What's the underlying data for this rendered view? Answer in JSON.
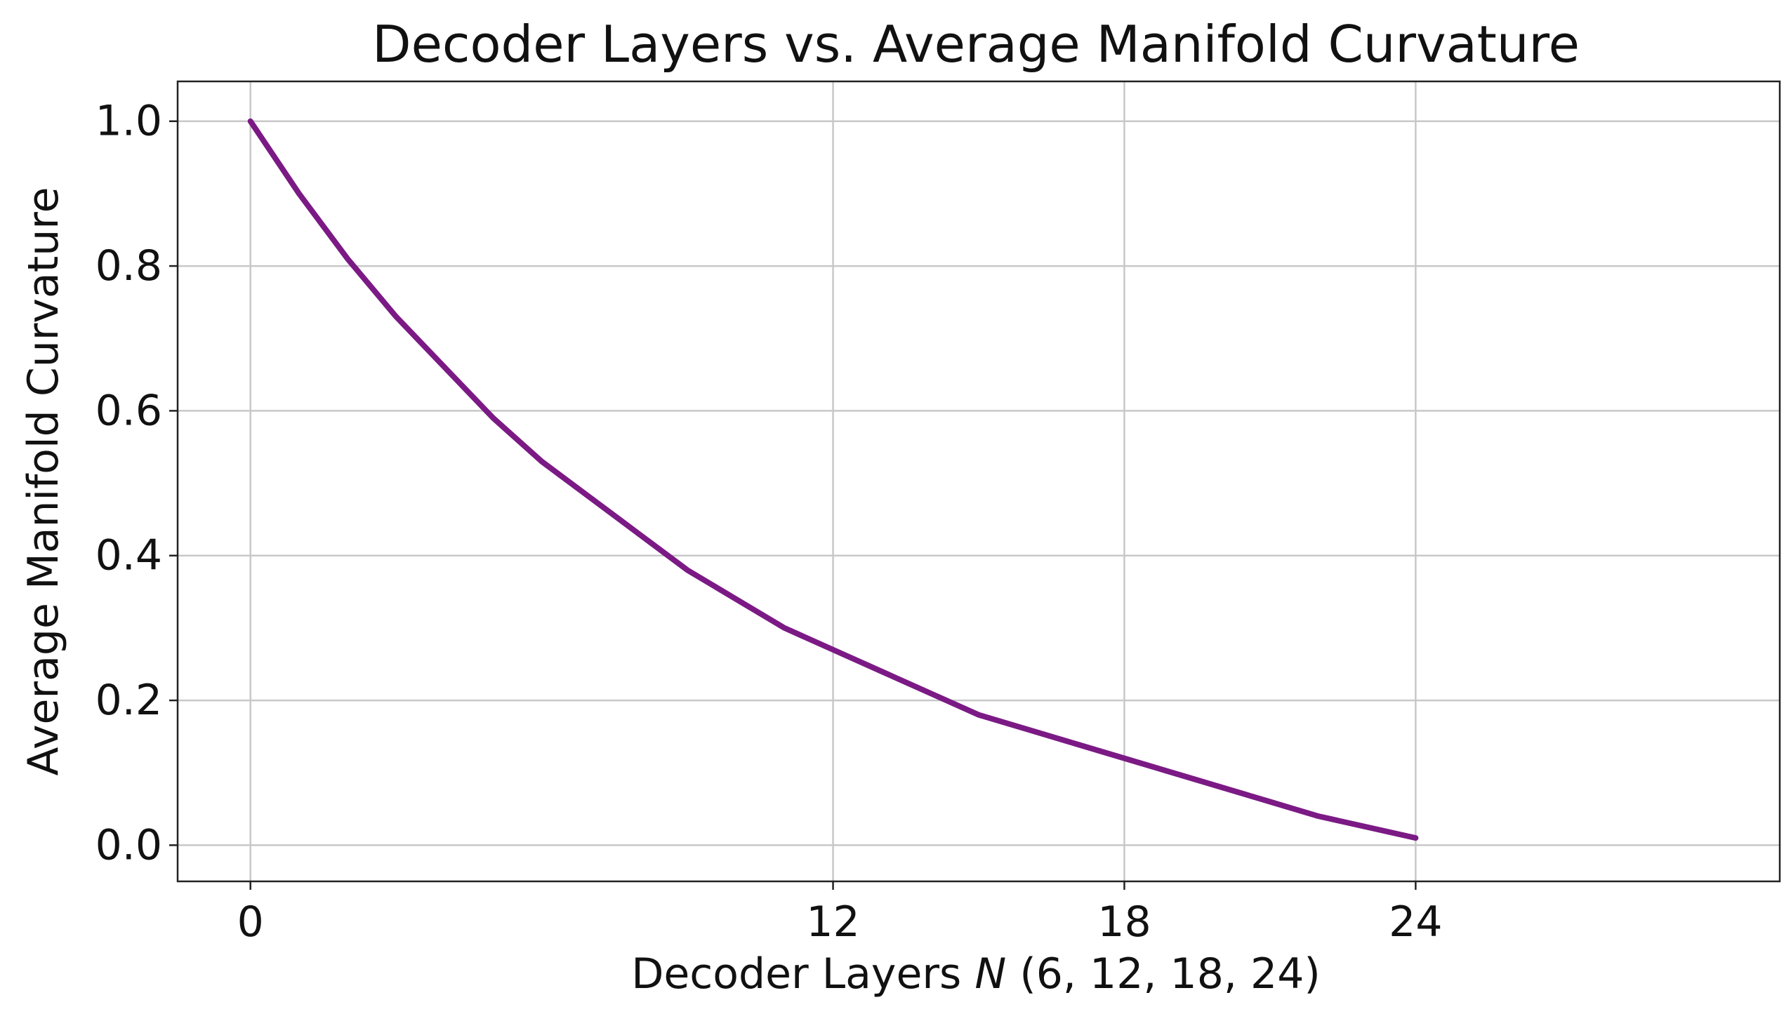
{
  "chart_data": {
    "type": "line",
    "title": "Decoder Layers vs. Average Manifold Curvature",
    "xlabel_prefix": "Decoder Layers ",
    "xlabel_var": "N",
    "xlabel_suffix": " (6, 12, 18, 24)",
    "ylabel": "Average Manifold Curvature",
    "xlim": [
      -1.5,
      31.5
    ],
    "ylim": [
      -0.05,
      1.055
    ],
    "xticks": [
      0,
      12,
      18,
      24
    ],
    "xtick_labels": [
      "0",
      "12",
      "18",
      "24"
    ],
    "yticks": [
      0.0,
      0.2,
      0.4,
      0.6,
      0.8,
      1.0
    ],
    "ytick_labels": [
      "0.0",
      "0.2",
      "0.4",
      "0.6",
      "0.8",
      "1.0"
    ],
    "grid": true,
    "series": [
      {
        "color": "#7b1a85",
        "x": [
          0,
          1,
          2,
          3,
          4,
          5,
          6,
          7,
          8,
          9,
          10,
          11,
          12,
          13,
          14,
          15,
          16,
          17,
          18,
          19,
          20,
          21,
          22,
          23,
          24
        ],
        "y": [
          1.0,
          0.9,
          0.81,
          0.73,
          0.66,
          0.59,
          0.53,
          0.48,
          0.43,
          0.38,
          0.34,
          0.3,
          0.27,
          0.24,
          0.21,
          0.18,
          0.16,
          0.14,
          0.12,
          0.1,
          0.08,
          0.06,
          0.04,
          0.025,
          0.01
        ]
      }
    ]
  }
}
